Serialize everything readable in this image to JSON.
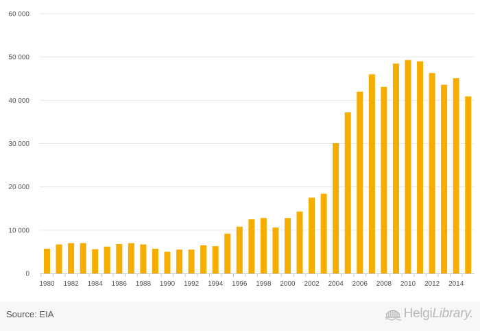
{
  "chart_data": {
    "type": "bar",
    "title": "",
    "xlabel": "",
    "ylabel": "",
    "ylim": [
      0,
      60000
    ],
    "yticks": [
      0,
      10000,
      20000,
      30000,
      40000,
      50000,
      60000
    ],
    "ytick_labels": [
      "0",
      "10 000",
      "20 000",
      "30 000",
      "40 000",
      "50 000",
      "60 000"
    ],
    "categories": [
      "1980",
      "1981",
      "1982",
      "1983",
      "1984",
      "1985",
      "1986",
      "1987",
      "1988",
      "1989",
      "1990",
      "1991",
      "1992",
      "1993",
      "1994",
      "1995",
      "1996",
      "1997",
      "1998",
      "1999",
      "2000",
      "2001",
      "2002",
      "2003",
      "2004",
      "2005",
      "2006",
      "2007",
      "2008",
      "2009",
      "2010",
      "2011",
      "2012",
      "2013",
      "2014",
      "2015"
    ],
    "xtick_labels": [
      "1980",
      "1982",
      "1984",
      "1986",
      "1988",
      "1990",
      "1992",
      "1994",
      "1996",
      "1998",
      "2000",
      "2002",
      "2004",
      "2006",
      "2008",
      "2010",
      "2012",
      "2014"
    ],
    "values": [
      5700,
      6700,
      7000,
      7000,
      5600,
      6200,
      6800,
      7000,
      6700,
      5700,
      5000,
      5500,
      5500,
      6500,
      6300,
      9200,
      10800,
      12500,
      12800,
      10600,
      12800,
      14300,
      17500,
      18400,
      30100,
      37200,
      42000,
      46000,
      43100,
      48500,
      49300,
      49000,
      46300,
      43600,
      45100,
      40900
    ],
    "bar_color": "#f5ad00",
    "grid": true
  },
  "footer": {
    "source": "Source: EIA",
    "logo_part1": "Helgi",
    "logo_part2": "Library."
  }
}
